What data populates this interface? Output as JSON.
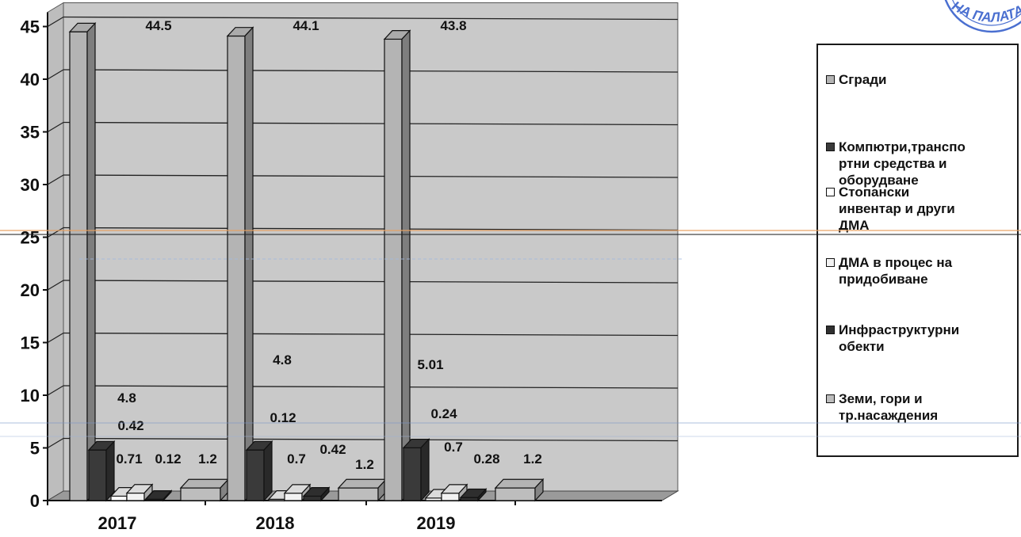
{
  "chart_data": {
    "type": "bar",
    "categories": [
      "2017",
      "2018",
      "2019"
    ],
    "ylim": [
      0,
      45
    ],
    "yticks": [
      "0",
      "5",
      "10",
      "15",
      "20",
      "25",
      "30",
      "35",
      "40",
      "45"
    ],
    "series": [
      {
        "name": "Сгради",
        "color": "#b4b4b4",
        "values": [
          44.5,
          44.1,
          43.8
        ]
      },
      {
        "name": "Компютри,транспортни средства и оборудване",
        "color": "#3a3a3a",
        "values": [
          4.8,
          4.8,
          5.01
        ]
      },
      {
        "name": "Стопански инвентар и други ДМА",
        "color": "#ffffff",
        "values": [
          0.42,
          0.12,
          0.24
        ]
      },
      {
        "name": "ДМА  в процес на придобиване",
        "color": "#f2f2f2",
        "values": [
          0.71,
          0.7,
          0.7
        ]
      },
      {
        "name": "Инфраструктурни обекти",
        "color": "#303030",
        "values": [
          0.12,
          0.42,
          0.28
        ]
      },
      {
        "name": "Земи, гори и тр.насаждения",
        "color": "#bdbdbd",
        "values": [
          1.2,
          1.2,
          1.2
        ]
      }
    ],
    "data_labels": {
      "2017": [
        "44.5",
        "4.8",
        "0.42",
        "0.71",
        "0.12",
        "1.2"
      ],
      "2018": [
        "44.1",
        "4.8",
        "0.12",
        "0.7",
        "0.42",
        "1.2"
      ],
      "2019": [
        "43.8",
        "5.01",
        "0.24",
        "0.7",
        "0.28",
        "1.2"
      ]
    },
    "legend": {
      "position": "right",
      "lines": [
        "Сгради",
        "Компютри,транспо\nртни средства и\nоборудване",
        "Стопански\nинвентар и други\nДМА",
        "ДМА  в процес на\nпридобиване",
        "Инфраструктурни\nобекти",
        "Земи, гори и\nтр.насаждения"
      ]
    },
    "grid": true,
    "chart_style": "3d-clustered-column"
  },
  "stamp": {
    "text": "НА ПАЛАТА"
  }
}
